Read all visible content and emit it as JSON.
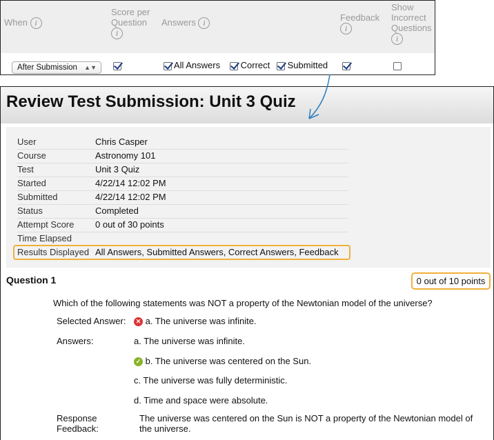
{
  "options_panel": {
    "headers": {
      "when": "When",
      "score_per_question": "Score per Question",
      "answers": "Answers",
      "feedback": "Feedback",
      "show_incorrect": "Show Incorrect Questions"
    },
    "when_select": "After Submission",
    "score_per_question_checked": true,
    "answers_options": [
      {
        "label": "All Answers",
        "checked": true
      },
      {
        "label": "Correct",
        "checked": true
      },
      {
        "label": "Submitted",
        "checked": true
      }
    ],
    "feedback_checked": true,
    "show_incorrect_checked": false,
    "arrow_color": "#2a7fc0"
  },
  "page": {
    "title": "Review Test Submission: Unit 3 Quiz"
  },
  "details": [
    {
      "label": "User",
      "value": "Chris Casper"
    },
    {
      "label": "Course",
      "value": "Astronomy 101"
    },
    {
      "label": "Test",
      "value": "Unit 3 Quiz"
    },
    {
      "label": "Started",
      "value": "4/22/14 12:02 PM"
    },
    {
      "label": "Submitted",
      "value": "4/22/14 12:02 PM"
    },
    {
      "label": "Status",
      "value": "Completed"
    },
    {
      "label": "Attempt Score",
      "value": "0 out of 30 points"
    },
    {
      "label": "Time Elapsed",
      "value": ""
    },
    {
      "label": "Results Displayed",
      "value": "All Answers, Submitted Answers, Correct Answers, Feedback"
    }
  ],
  "highlight_color": "#f0b03a",
  "question": {
    "title": "Question 1",
    "points": "0 out of 10 points",
    "text": "Which of the following statements was NOT a property of the Newtonian model of the universe?",
    "selected_label": "Selected Answer:",
    "selected": {
      "letter": "a.",
      "text": "The universe was infinite.",
      "status": "incorrect"
    },
    "answers_label": "Answers:",
    "answers": [
      {
        "letter": "a.",
        "text": "The universe was infinite.",
        "correct": false
      },
      {
        "letter": "b.",
        "text": "The universe was centered on the Sun.",
        "correct": true
      },
      {
        "letter": "c.",
        "text": "The universe was fully deterministic.",
        "correct": false
      },
      {
        "letter": "d.",
        "text": "Time and space were absolute.",
        "correct": false
      }
    ],
    "feedback_label": "Response Feedback:",
    "feedback_label_line1": "Response",
    "feedback_label_line2": "Feedback:",
    "feedback": "The universe was centered on the Sun is NOT a property of the Newtonian model of the universe."
  }
}
